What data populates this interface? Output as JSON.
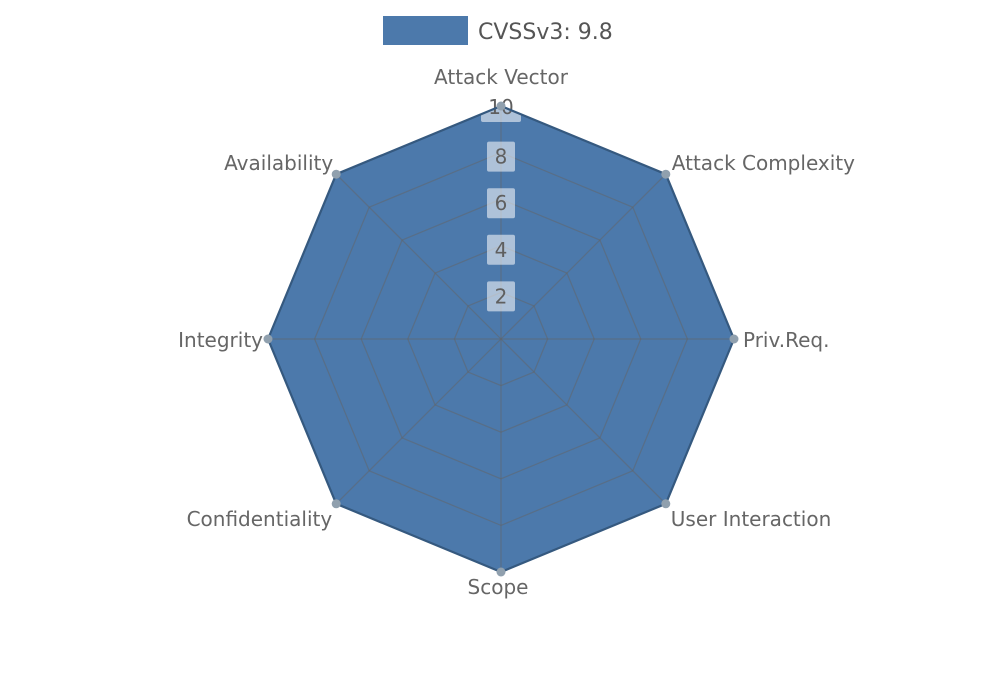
{
  "legend": {
    "label": "CVSSv3: 9.8",
    "position": "top"
  },
  "colors": {
    "fill": "#4c79ab",
    "outline": "#35597f",
    "grid": "#646464",
    "grid_opacity": 0.5,
    "marker": "#90a0ae",
    "tick_box_bg": "#ffffff",
    "tick_box_opacity": 0.55,
    "tick_text": "#5f5f5f",
    "axis_label_text": "#666666",
    "legend_text": "#555555",
    "background": "#ffffff"
  },
  "chart_data": {
    "type": "radar",
    "title": "",
    "categories": [
      "Attack Vector",
      "Attack Complexity",
      "Priv.Req.",
      "User Interaction",
      "Scope",
      "Confidentiality",
      "Integrity",
      "Availability"
    ],
    "series": [
      {
        "name": "CVSSv3: 9.8",
        "values": [
          10,
          10,
          10,
          10,
          10,
          10,
          10,
          10
        ]
      }
    ],
    "ticks": [
      2,
      4,
      6,
      8,
      10
    ],
    "rmax": 10,
    "grid": true,
    "legend_position": "top"
  }
}
